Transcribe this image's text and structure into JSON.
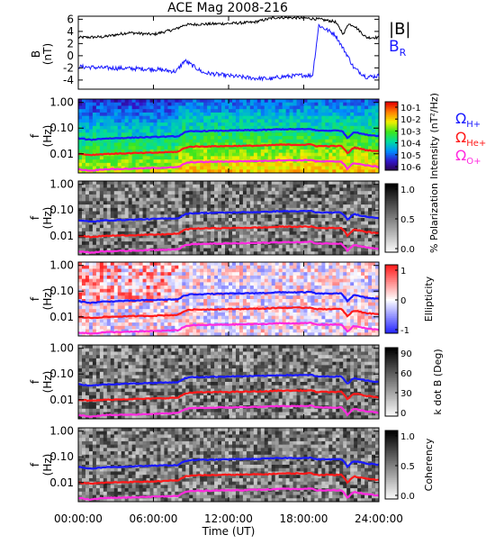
{
  "title": "ACE Mag 2008-216",
  "legend_top": {
    "b_mag": "|B|",
    "b_r_main": "B",
    "b_r_sub": "R"
  },
  "legend_gyro": {
    "h": {
      "sym": "Ω",
      "sub": "H+"
    },
    "he": {
      "sym": "Ω",
      "sub": "He+"
    },
    "o": {
      "sym": "Ω",
      "sub": "O+"
    }
  },
  "x_axis": {
    "label": "Time (UT)",
    "ticks": [
      "00:00:00",
      "06:00:00",
      "12:00:00",
      "18:00:00",
      "24:00:00"
    ]
  },
  "colors": {
    "b_mag": "#000000",
    "b_r": "#1a1aff",
    "h_plus": "#1a1aff",
    "he_plus": "#ff1a1a",
    "o_plus": "#ff2adf"
  },
  "chart_data": [
    {
      "type": "line",
      "title": "ACE Mag 2008-216",
      "ylabel_main": "B",
      "ylabel_sub": "(nT)",
      "ylim": [
        -5.5,
        6.5
      ],
      "yticks": [
        "6",
        "4",
        "2",
        "0",
        "-2",
        "-4"
      ],
      "x": [
        0,
        2,
        4,
        6,
        7.8,
        8.5,
        10,
        12,
        14,
        15.5,
        16,
        18,
        18.7,
        19.2,
        20.5,
        21.2,
        21.5,
        22,
        23,
        24
      ],
      "series": [
        {
          "name": "|B|",
          "values": [
            3.0,
            3.1,
            3.8,
            3.5,
            4.4,
            5.1,
            5.2,
            5.3,
            5.5,
            6.2,
            6.3,
            6.2,
            6.1,
            6.0,
            5.6,
            3.5,
            5.2,
            5.0,
            3.0,
            3.0
          ]
        },
        {
          "name": "B_R",
          "values": [
            -1.8,
            -2.0,
            -2.1,
            -2.2,
            -2.6,
            -0.8,
            -2.8,
            -3.3,
            -3.7,
            -3.8,
            -3.5,
            -3.2,
            -3.3,
            5.0,
            3.5,
            1.0,
            0.0,
            -2.0,
            -3.5,
            -3.3
          ]
        }
      ]
    },
    {
      "type": "heatmap",
      "ylabel_main": "f",
      "ylabel_sub": "(Hz)",
      "yticks": [
        "1.00",
        "0.10",
        "0.01"
      ],
      "colorbar_label": "Intensity (nT²/Hz)",
      "colorbar_ticks": [
        "10-1",
        "10-2",
        "10-3",
        "10-4",
        "10-5",
        "10-6"
      ]
    },
    {
      "type": "heatmap",
      "ylabel_main": "f",
      "ylabel_sub": "(Hz)",
      "yticks": [
        "1.00",
        "0.10",
        "0.01"
      ],
      "colorbar_label": "% Polarization",
      "colorbar_ticks": [
        "1.0",
        "0.5",
        "0.0"
      ]
    },
    {
      "type": "heatmap",
      "ylabel_main": "f",
      "ylabel_sub": "(Hz)",
      "yticks": [
        "1.00",
        "0.10",
        "0.01"
      ],
      "colorbar_label": "Ellipticity",
      "colorbar_ticks": [
        "1",
        "0",
        "-1"
      ]
    },
    {
      "type": "heatmap",
      "ylabel_main": "f",
      "ylabel_sub": "(Hz)",
      "yticks": [
        "1.00",
        "0.10",
        "0.01"
      ],
      "colorbar_label": "k dot B (Deg)",
      "colorbar_ticks": [
        "90",
        "60",
        "30",
        "0"
      ]
    },
    {
      "type": "heatmap",
      "ylabel_main": "f",
      "ylabel_sub": "(Hz)",
      "yticks": [
        "1.00",
        "0.10",
        "0.01"
      ],
      "colorbar_label": "Coherency",
      "colorbar_ticks": [
        "1.0",
        "0.5",
        "0.0"
      ]
    }
  ],
  "gyro_frequencies_hz": {
    "x": [
      0,
      1,
      2,
      4,
      6,
      8,
      8.5,
      9,
      12,
      15,
      16,
      18,
      18.6,
      19,
      21,
      21.5,
      22,
      23,
      24
    ],
    "h_plus": [
      0.04,
      0.035,
      0.039,
      0.042,
      0.045,
      0.048,
      0.068,
      0.075,
      0.08,
      0.085,
      0.09,
      0.09,
      0.092,
      0.08,
      0.08,
      0.04,
      0.07,
      0.055,
      0.05
    ],
    "he_plus": [
      0.01,
      0.009,
      0.0098,
      0.0105,
      0.011,
      0.012,
      0.017,
      0.019,
      0.02,
      0.021,
      0.0225,
      0.0225,
      0.023,
      0.02,
      0.02,
      0.01,
      0.0175,
      0.014,
      0.0125
    ],
    "o_plus": [
      0.0025,
      0.0022,
      0.0025,
      0.0026,
      0.0028,
      0.003,
      0.0042,
      0.0047,
      0.005,
      0.0053,
      0.0056,
      0.0056,
      0.0058,
      0.005,
      0.005,
      0.0025,
      0.0044,
      0.0035,
      0.0031
    ]
  }
}
